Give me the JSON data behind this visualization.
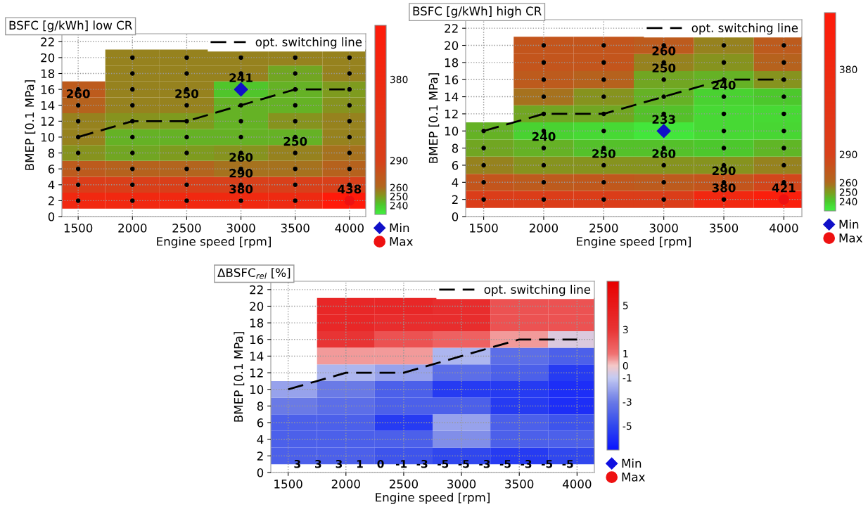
{
  "chart_data": [
    {
      "type": "heatmap",
      "title": "BSFC [g/kWh] low CR",
      "xlabel": "Engine speed [rpm]",
      "ylabel": "BMEP [0.1 MPa]",
      "x": [
        1500,
        2000,
        2500,
        3000,
        3500,
        4000
      ],
      "y": [
        20,
        18,
        16,
        14,
        12,
        10,
        8,
        6,
        4,
        2
      ],
      "cells": [
        [
          null,
          255,
          255,
          255,
          255,
          255
        ],
        [
          null,
          255,
          255,
          255,
          248,
          255
        ],
        [
          270,
          255,
          255,
          241,
          245,
          250
        ],
        [
          265,
          255,
          255,
          245,
          245,
          252
        ],
        [
          255,
          252,
          250,
          245,
          252,
          255
        ],
        [
          255,
          245,
          245,
          245,
          245,
          255
        ],
        [
          252,
          248,
          250,
          252,
          255,
          258
        ],
        [
          270,
          265,
          262,
          258,
          258,
          265
        ],
        [
          300,
          295,
          295,
          292,
          292,
          292
        ],
        [
          385,
          385,
          385,
          382,
          375,
          438
        ]
      ],
      "colors": [
        "#40f040",
        "#4cc82c",
        "#7f9a1e",
        "#b0681e",
        "#d8401a",
        "#ff1a0a"
      ],
      "clim": [
        230,
        440
      ],
      "cticks": [
        240,
        250,
        260,
        290,
        380
      ],
      "xlim": [
        1350,
        4150
      ],
      "ylim": [
        0,
        23
      ],
      "xticks": [
        1500,
        2000,
        2500,
        3000,
        3500,
        4000
      ],
      "yticks": [
        0,
        2,
        4,
        6,
        8,
        10,
        12,
        14,
        16,
        18,
        20,
        22
      ],
      "grid": true,
      "legend": "right",
      "series": [
        {
          "type": "scatter",
          "marker": "circle",
          "color": "#000000",
          "x": [
            1500,
            1500,
            1500,
            1500,
            1500,
            1500,
            1500,
            1500,
            2000,
            2000,
            2000,
            2000,
            2000,
            2000,
            2000,
            2000,
            2000,
            2000,
            2500,
            2500,
            2500,
            2500,
            2500,
            2500,
            2500,
            2500,
            2500,
            2500,
            3000,
            3000,
            3000,
            3000,
            3000,
            3000,
            3000,
            3000,
            3000,
            3500,
            3500,
            3500,
            3500,
            3500,
            3500,
            3500,
            3500,
            3500,
            3500,
            4000,
            4000,
            4000,
            4000,
            4000,
            4000,
            4000,
            4000,
            4000
          ],
          "values": [
            2,
            4,
            6,
            8,
            10,
            12,
            14,
            16,
            2,
            4,
            6,
            8,
            10,
            12,
            14,
            16,
            18,
            20,
            2,
            4,
            6,
            8,
            10,
            12,
            14,
            16,
            18,
            20,
            2,
            4,
            6,
            8,
            10,
            12,
            14,
            18,
            20,
            2,
            4,
            6,
            8,
            10,
            12,
            14,
            16,
            18,
            20,
            4,
            6,
            8,
            10,
            12,
            14,
            16,
            18,
            20
          ]
        },
        {
          "type": "line",
          "name": "opt. switching line",
          "color": "#000000",
          "line_style": "dashed",
          "x": [
            1500,
            2000,
            2500,
            3000,
            3500,
            4000
          ],
          "values": [
            10,
            12,
            12,
            14,
            16,
            16
          ]
        },
        {
          "type": "scatter",
          "name": "Min",
          "marker": "diamond",
          "color": "#1010c8",
          "x": [
            3000
          ],
          "values": [
            16
          ]
        },
        {
          "type": "scatter",
          "name": "Max",
          "marker": "circle",
          "color": "#ee1111",
          "x": [
            4000
          ],
          "values": [
            2
          ]
        }
      ],
      "annotations": [
        {
          "text": "260",
          "x": 1500,
          "y": 14
        },
        {
          "text": "250",
          "x": 2500,
          "y": 14
        },
        {
          "text": "241",
          "x": 3000,
          "y": 16
        },
        {
          "text": "250",
          "x": 3500,
          "y": 8
        },
        {
          "text": "260",
          "x": 3000,
          "y": 6
        },
        {
          "text": "290",
          "x": 3000,
          "y": 4
        },
        {
          "text": "380",
          "x": 3000,
          "y": 2
        },
        {
          "text": "438",
          "x": 4000,
          "y": 2
        }
      ]
    },
    {
      "type": "heatmap",
      "title": "BSFC [g/kWh] high CR",
      "xlabel": "Engine speed [rpm]",
      "ylabel": "BMEP [0.1 MPa]",
      "x": [
        1500,
        2000,
        2500,
        3000,
        3500,
        4000
      ],
      "y": [
        20,
        18,
        16,
        14,
        12,
        10,
        8,
        6,
        4,
        2
      ],
      "cells": [
        [
          null,
          275,
          275,
          270,
          255,
          270
        ],
        [
          null,
          275,
          275,
          255,
          252,
          265
        ],
        [
          null,
          270,
          265,
          248,
          245,
          252
        ],
        [
          null,
          258,
          252,
          245,
          238,
          240
        ],
        [
          null,
          248,
          248,
          242,
          236,
          236
        ],
        [
          245,
          238,
          236,
          233,
          236,
          237
        ],
        [
          248,
          245,
          242,
          242,
          240,
          244
        ],
        [
          255,
          252,
          252,
          252,
          252,
          255
        ],
        [
          275,
          270,
          272,
          270,
          275,
          285
        ],
        [
          300,
          300,
          300,
          300,
          385,
          421
        ]
      ],
      "colors": [
        "#40f040",
        "#4cc82c",
        "#7f9a1e",
        "#b0681e",
        "#d8401a",
        "#ff1a0a"
      ],
      "clim": [
        230,
        440
      ],
      "cticks": [
        240,
        250,
        260,
        290,
        380
      ],
      "xlim": [
        1350,
        4150
      ],
      "ylim": [
        0,
        23
      ],
      "xticks": [
        1500,
        2000,
        2500,
        3000,
        3500,
        4000
      ],
      "yticks": [
        0,
        2,
        4,
        6,
        8,
        10,
        12,
        14,
        16,
        18,
        20,
        22
      ],
      "grid": true,
      "legend": "right",
      "series": [
        {
          "type": "scatter",
          "marker": "circle",
          "color": "#000000",
          "x": [
            1500,
            1500,
            1500,
            1500,
            1500,
            2000,
            2000,
            2000,
            2000,
            2000,
            2000,
            2000,
            2000,
            2000,
            2000,
            2500,
            2500,
            2500,
            2500,
            2500,
            2500,
            2500,
            2500,
            2500,
            2500,
            3000,
            3000,
            3000,
            3000,
            3000,
            3000,
            3000,
            3000,
            3000,
            3500,
            3500,
            3500,
            3500,
            3500,
            3500,
            3500,
            3500,
            3500,
            3500,
            4000,
            4000,
            4000,
            4000,
            4000,
            4000,
            4000,
            4000,
            4000
          ],
          "values": [
            2,
            4,
            6,
            8,
            10,
            2,
            4,
            6,
            8,
            10,
            12,
            14,
            16,
            18,
            20,
            2,
            4,
            6,
            8,
            10,
            12,
            14,
            16,
            18,
            20,
            2,
            4,
            6,
            8,
            12,
            14,
            16,
            18,
            20,
            2,
            4,
            6,
            8,
            10,
            12,
            14,
            16,
            18,
            20,
            4,
            6,
            8,
            10,
            12,
            14,
            16,
            18,
            20
          ]
        },
        {
          "type": "line",
          "name": "opt. switching line",
          "color": "#000000",
          "line_style": "dashed",
          "x": [
            1500,
            2000,
            2500,
            3000,
            3500,
            4000
          ],
          "values": [
            10,
            12,
            12,
            14,
            16,
            16
          ]
        },
        {
          "type": "scatter",
          "name": "Min",
          "marker": "diamond",
          "color": "#1010c8",
          "x": [
            3000
          ],
          "values": [
            10
          ]
        },
        {
          "type": "scatter",
          "name": "Max",
          "marker": "circle",
          "color": "#ee1111",
          "x": [
            4000
          ],
          "values": [
            2
          ]
        }
      ],
      "annotations": [
        {
          "text": "260",
          "x": 3000,
          "y": 18
        },
        {
          "text": "250",
          "x": 3000,
          "y": 16
        },
        {
          "text": "240",
          "x": 3500,
          "y": 14
        },
        {
          "text": "233",
          "x": 3000,
          "y": 10
        },
        {
          "text": "240",
          "x": 2000,
          "y": 8
        },
        {
          "text": "250",
          "x": 2500,
          "y": 6
        },
        {
          "text": "260",
          "x": 3000,
          "y": 6
        },
        {
          "text": "290",
          "x": 3500,
          "y": 4
        },
        {
          "text": "380",
          "x": 3500,
          "y": 2
        },
        {
          "text": "421",
          "x": 4000,
          "y": 2
        }
      ]
    },
    {
      "type": "heatmap",
      "title": "ΔBSFC$_{rel}$ [%]",
      "xlabel": "Engine speed [rpm]",
      "ylabel": "BMEP [0.1 MPa]",
      "x": [
        1500,
        2000,
        2500,
        3000,
        3500,
        4000
      ],
      "y": [
        20,
        18,
        16,
        14,
        12,
        10,
        8,
        6,
        4,
        2
      ],
      "cells": [
        [
          null,
          4,
          4,
          3.5,
          2,
          2
        ],
        [
          null,
          4,
          3.5,
          3.5,
          2,
          2
        ],
        [
          null,
          3,
          2,
          1.5,
          0.5,
          -0.5
        ],
        [
          null,
          0.5,
          0.5,
          -1.5,
          -3.5,
          -4
        ],
        [
          null,
          -1.5,
          -2,
          -3.5,
          -4,
          -5.5
        ],
        [
          -2,
          -3,
          -4,
          -5.5,
          -5.5,
          -6
        ],
        [
          -3,
          -3.5,
          -4,
          -4,
          -5.5,
          -6
        ],
        [
          -4,
          -4,
          -5.5,
          -2,
          -4,
          -4.5
        ],
        [
          -4,
          -4,
          -4,
          -2.5,
          -4,
          -4
        ],
        [
          -4,
          -4,
          -4.5,
          -5,
          -5.5,
          -5
        ]
      ],
      "colors": [
        "#0a14ff",
        "#3048ee",
        "#6a7ae6",
        "#c4caf2",
        "#f4c8c8",
        "#f07070",
        "#e83434",
        "#e80000"
      ],
      "clim": [
        -7,
        7
      ],
      "cticks": [
        -5,
        -3,
        -1,
        0,
        1,
        3,
        5
      ],
      "xlim": [
        1350,
        4150
      ],
      "ylim": [
        0,
        23
      ],
      "xticks": [
        1500,
        2000,
        2500,
        3000,
        3500,
        4000
      ],
      "yticks": [
        0,
        2,
        4,
        6,
        8,
        10,
        12,
        14,
        16,
        18,
        20,
        22
      ],
      "grid": true,
      "legend": "right",
      "series": [
        {
          "type": "line",
          "name": "opt. switching line",
          "color": "#000000",
          "line_style": "dashed",
          "x": [
            1500,
            2000,
            2500,
            3000,
            3500,
            4000
          ],
          "values": [
            10,
            12,
            12,
            14,
            16,
            16
          ]
        },
        {
          "type": "scatter",
          "name": "Min",
          "marker": "diamond",
          "color": "#1010e0",
          "values": [
            null,
            null,
            null,
            null,
            null,
            null
          ]
        },
        {
          "type": "scatter",
          "name": "Max",
          "marker": "circle",
          "color": "#ee1111",
          "values": [
            null,
            null,
            null,
            null,
            null,
            null
          ]
        }
      ],
      "annotations": [
        "3",
        "3",
        "3",
        "1",
        "0",
        "-1",
        "-3",
        "-5",
        "-5",
        "-3",
        "-5",
        "-3",
        "-5",
        "-5"
      ]
    }
  ]
}
